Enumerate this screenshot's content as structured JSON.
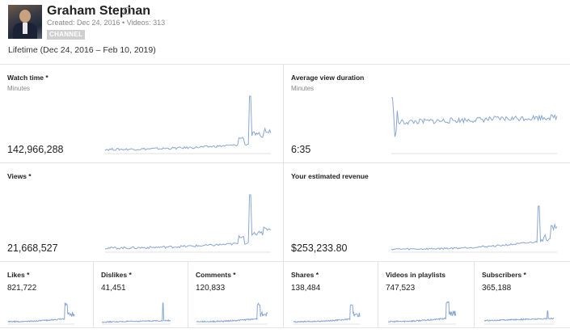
{
  "channel": {
    "name": "Graham Stephan",
    "meta": "Created: Dec 24, 2016  •  Videos: 313",
    "badge": "CHANNEL"
  },
  "range_label": "Lifetime (Dec 24, 2016 – Feb 10, 2019)",
  "icons": {
    "channel_link": "link-icon",
    "avatar": "channel-avatar"
  },
  "colors": {
    "sparkline": "#89a7d3",
    "divider": "#e4e4e4"
  },
  "metrics": {
    "watch_time": {
      "title": "Watch time *",
      "unit": "Minutes",
      "value": "142,966,288"
    },
    "avg_view_duration": {
      "title": "Average view duration",
      "unit": "Minutes",
      "value": "6:35"
    },
    "views": {
      "title": "Views *",
      "value": "21,668,527"
    },
    "revenue": {
      "title": "Your estimated revenue",
      "value": "$253,233.80"
    },
    "likes": {
      "title": "Likes *",
      "value": "821,722"
    },
    "dislikes": {
      "title": "Dislikes *",
      "value": "41,451"
    },
    "comments": {
      "title": "Comments *",
      "value": "120,833"
    },
    "shares": {
      "title": "Shares *",
      "value": "138,484"
    },
    "playlists": {
      "title": "Videos in playlists",
      "value": "747,523"
    },
    "subscribers": {
      "title": "Subscribers *",
      "value": "365,188"
    }
  }
}
